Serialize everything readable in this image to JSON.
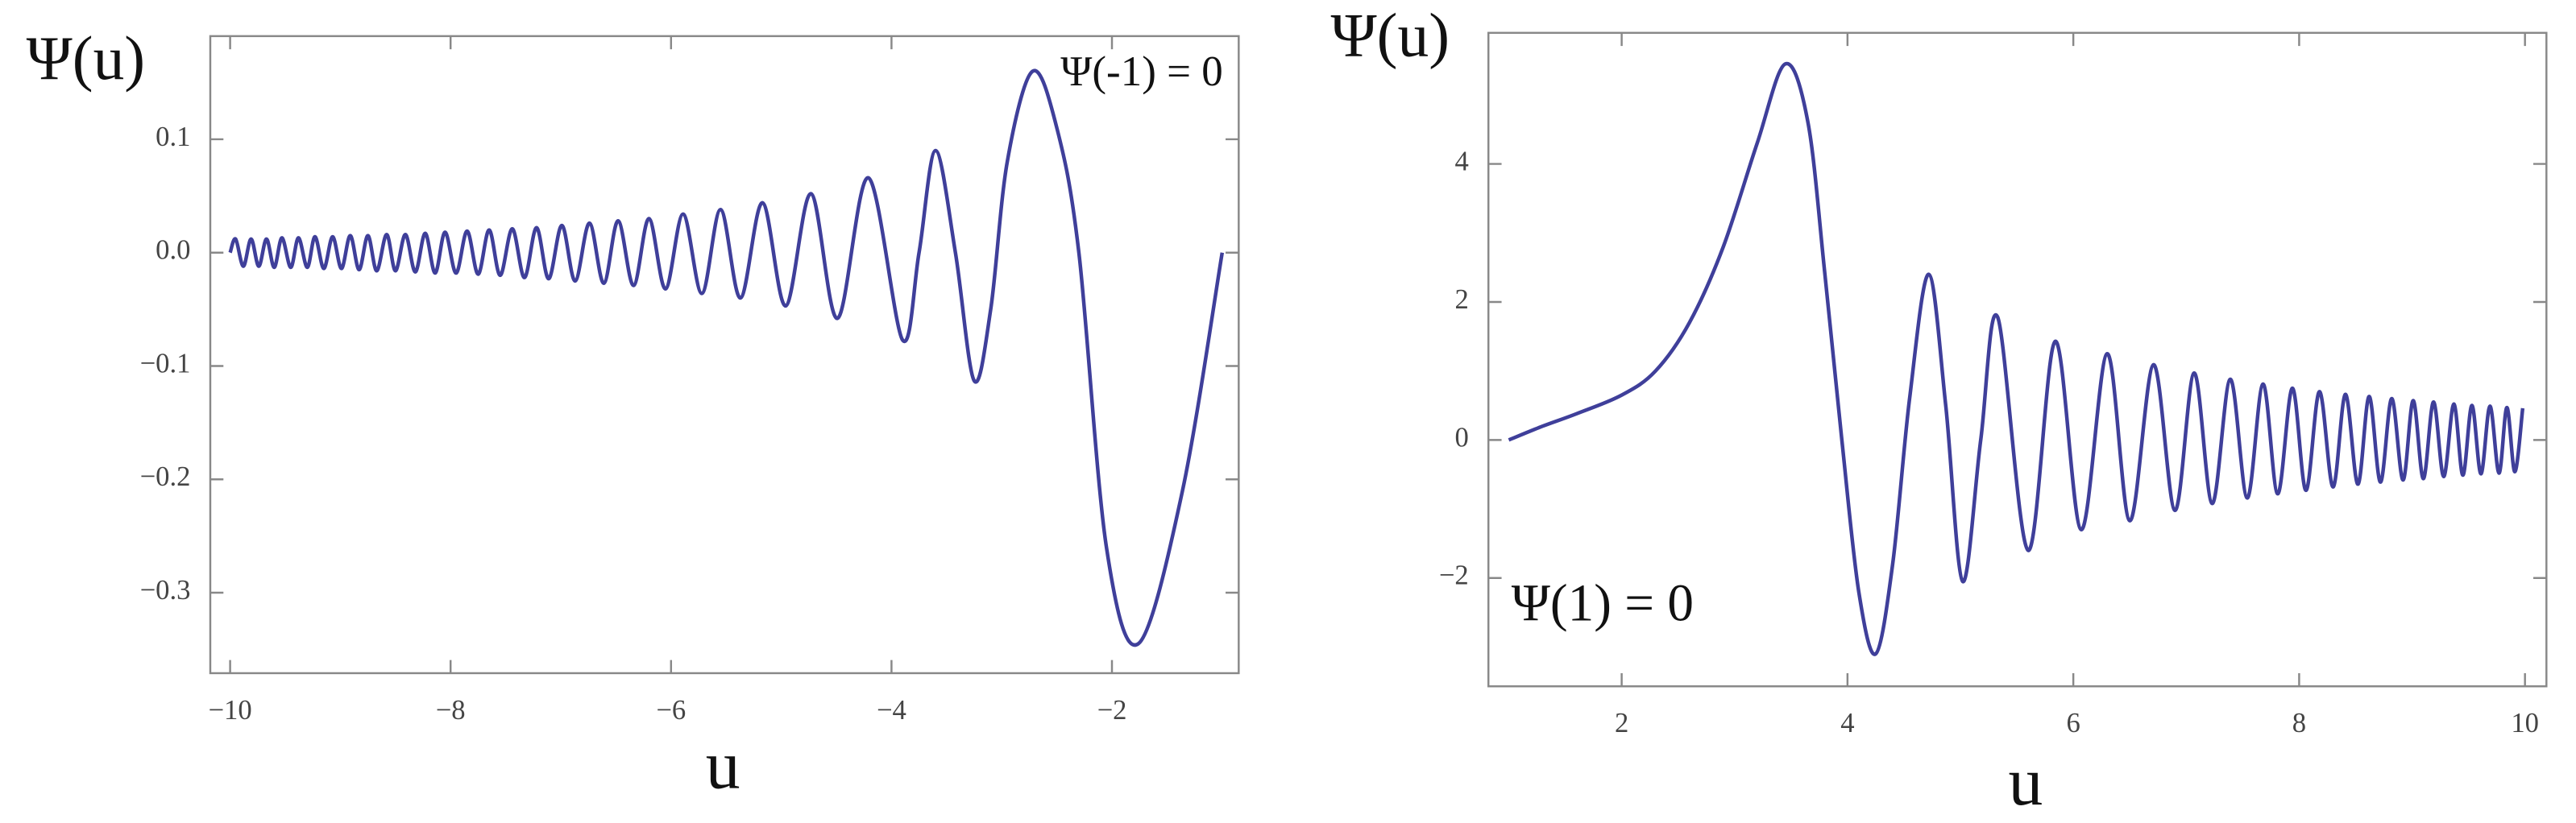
{
  "chart_data": [
    {
      "type": "line",
      "y_label": "Ψ(u)",
      "x_label": "u",
      "annotation": "Ψ(-1) = 0",
      "color": "#3f3f9a",
      "xlim": [
        -10.18,
        -0.85
      ],
      "ylim": [
        -0.371,
        0.191
      ],
      "xticks": [
        {
          "value": -10,
          "label": "−10"
        },
        {
          "value": -8,
          "label": "−8"
        },
        {
          "value": -6,
          "label": "−6"
        },
        {
          "value": -4,
          "label": "−4"
        },
        {
          "value": -2,
          "label": "−2"
        }
      ],
      "yticks": [
        0.1,
        {
          "value": 0,
          "label": "0.0"
        },
        {
          "value": -0.1,
          "label": "−0.1"
        },
        {
          "value": -0.2,
          "label": "−0.2"
        },
        {
          "value": -0.3,
          "label": "−0.3"
        }
      ],
      "x": [
        -10.0,
        -9.95,
        -9.88,
        -9.81,
        -9.74,
        -9.67,
        -9.6,
        -9.53,
        -9.45,
        -9.38,
        -9.3,
        -9.23,
        -9.15,
        -9.07,
        -8.99,
        -8.91,
        -8.83,
        -8.75,
        -8.67,
        -8.58,
        -8.5,
        -8.41,
        -8.32,
        -8.23,
        -8.14,
        -8.05,
        -7.95,
        -7.85,
        -7.75,
        -7.65,
        -7.55,
        -7.44,
        -7.33,
        -7.22,
        -7.11,
        -6.99,
        -6.87,
        -6.74,
        -6.61,
        -6.48,
        -6.34,
        -6.2,
        -6.05,
        -5.89,
        -5.72,
        -5.55,
        -5.37,
        -5.17,
        -4.96,
        -4.73,
        -4.49,
        -4.21,
        -3.9,
        -3.75,
        -3.6,
        -3.42,
        -3.25,
        -3.1,
        -2.95,
        -2.72,
        -2.5,
        -2.3,
        -2.05,
        -1.76,
        -1.36,
        -1.0
      ],
      "values": [
        0,
        0.012,
        -0.012,
        0.012,
        -0.012,
        0.012,
        -0.013,
        0.013,
        -0.013,
        0.013,
        -0.013,
        0.014,
        -0.014,
        0.014,
        -0.014,
        0.015,
        -0.015,
        0.015,
        -0.016,
        0.016,
        -0.016,
        0.016,
        -0.017,
        0.017,
        -0.018,
        0.018,
        -0.018,
        0.019,
        -0.019,
        0.02,
        -0.02,
        0.021,
        -0.022,
        0.022,
        -0.023,
        0.024,
        -0.025,
        0.026,
        -0.027,
        0.028,
        -0.029,
        0.03,
        -0.032,
        0.034,
        -0.036,
        0.038,
        -0.04,
        0.044,
        -0.047,
        0.052,
        -0.058,
        0.066,
        -0.077,
        0,
        0.09,
        0,
        -0.113,
        -0.05,
        0.08,
        0.16,
        0.11,
        0,
        -0.26,
        -0.345,
        -0.21,
        0
      ]
    },
    {
      "type": "line",
      "y_label": "Ψ(u)",
      "x_label": "u",
      "annotation": "Ψ(1) = 0",
      "color": "#3f3f9a",
      "xlim": [
        0.82,
        10.19
      ],
      "ylim": [
        -3.57,
        5.9
      ],
      "xticks": [
        2,
        4,
        6,
        8,
        10
      ],
      "yticks": [
        4,
        2,
        0,
        {
          "value": -2,
          "label": "−2"
        }
      ],
      "x": [
        1.0,
        1.3,
        1.6,
        2.0,
        2.3,
        2.6,
        2.9,
        3.2,
        3.45,
        3.65,
        3.8,
        3.95,
        4.1,
        4.25,
        4.4,
        4.55,
        4.72,
        4.87,
        5.02,
        5.18,
        5.33,
        5.6,
        5.84,
        6.07,
        6.3,
        6.5,
        6.71,
        6.9,
        7.07,
        7.23,
        7.39,
        7.54,
        7.68,
        7.81,
        7.94,
        8.06,
        8.18,
        8.3,
        8.41,
        8.52,
        8.62,
        8.72,
        8.82,
        8.92,
        9.01,
        9.1,
        9.19,
        9.28,
        9.37,
        9.45,
        9.53,
        9.61,
        9.69,
        9.77,
        9.84,
        9.91,
        9.98
      ],
      "values": [
        0,
        0.2,
        0.38,
        0.65,
        1.0,
        1.7,
        2.8,
        4.3,
        5.45,
        4.6,
        2.4,
        0,
        -2.2,
        -3.1,
        -1.8,
        0.6,
        2.4,
        0.5,
        -2.05,
        0,
        1.78,
        -1.6,
        1.43,
        -1.3,
        1.25,
        -1.17,
        1.09,
        -1.02,
        0.97,
        -0.92,
        0.88,
        -0.84,
        0.81,
        -0.78,
        0.75,
        -0.73,
        0.7,
        -0.68,
        0.66,
        -0.64,
        0.63,
        -0.61,
        0.6,
        -0.58,
        0.57,
        -0.56,
        0.55,
        -0.53,
        0.52,
        -0.51,
        0.5,
        -0.49,
        0.49,
        -0.48,
        0.47,
        -0.46,
        0.46
      ]
    }
  ]
}
